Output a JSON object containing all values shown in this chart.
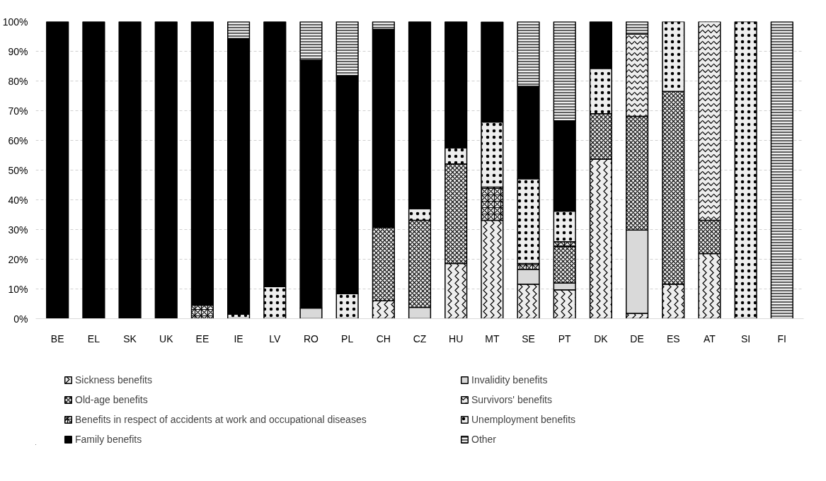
{
  "chart_data": {
    "type": "bar",
    "stacked": true,
    "categories": [
      "BE",
      "EL",
      "SK",
      "UK",
      "EE",
      "IE",
      "LV",
      "RO",
      "PL",
      "CH",
      "CZ",
      "HU",
      "MT",
      "SE",
      "PT",
      "DK",
      "DE",
      "ES",
      "AT",
      "SI",
      "FI"
    ],
    "series": [
      {
        "name": "Sickness benefits",
        "color": "#eeeeee",
        "values": [
          null,
          null,
          null,
          null,
          null,
          null,
          null,
          null,
          null,
          6.0,
          null,
          18.6,
          33.1,
          11.6,
          9.7,
          53.7,
          1.8,
          11.6,
          21.9,
          null,
          null
        ]
      },
      {
        "name": "Invalidity benefits",
        "color": "#d9d9d9",
        "values": [
          null,
          null,
          null,
          null,
          null,
          null,
          null,
          3.6,
          null,
          null,
          3.8,
          null,
          null,
          5.0,
          2.3,
          null,
          28.0,
          null,
          null,
          null,
          null
        ]
      },
      {
        "name": "Old-age benefits",
        "color": "#eeeeee",
        "values": [
          null,
          null,
          null,
          null,
          null,
          null,
          null,
          null,
          null,
          24.7,
          29.3,
          33.5,
          null,
          null,
          12.3,
          15.3,
          38.3,
          64.9,
          11.2,
          null,
          null
        ]
      },
      {
        "name": "Survivors' benefits",
        "color": "#eeeeee",
        "values": [
          null,
          null,
          null,
          null,
          null,
          null,
          null,
          null,
          null,
          null,
          null,
          null,
          null,
          null,
          null,
          null,
          27.7,
          null,
          66.9,
          null,
          null
        ]
      },
      {
        "name": "Benefits in respect of accidents at work and occupational diseases",
        "color": "#eeeeee",
        "values": [
          null,
          null,
          null,
          null,
          4.5,
          null,
          null,
          null,
          null,
          null,
          null,
          null,
          11.2,
          2.0,
          1.6,
          null,
          null,
          null,
          null,
          null,
          null
        ]
      },
      {
        "name": "Unemployment benefits",
        "color": "#eeeeee",
        "values": [
          null,
          null,
          null,
          null,
          null,
          1.5,
          10.8,
          null,
          8.4,
          null,
          3.9,
          5.4,
          21.9,
          28.5,
          10.3,
          15.2,
          null,
          23.5,
          null,
          100,
          null
        ]
      },
      {
        "name": "Family benefits",
        "color": "#000000",
        "values": [
          100,
          100,
          100,
          100,
          95.5,
          92.8,
          89.2,
          83.4,
          73.4,
          66.7,
          63.0,
          42.5,
          33.7,
          31.1,
          30.4,
          15.8,
          null,
          null,
          null,
          null,
          null
        ]
      },
      {
        "name": "Other",
        "color": "#eeeeee",
        "values": [
          null,
          null,
          null,
          null,
          null,
          5.7,
          null,
          13.0,
          18.2,
          2.6,
          null,
          null,
          null,
          21.8,
          33.4,
          null,
          4.2,
          null,
          null,
          null,
          100
        ]
      }
    ],
    "ylim": [
      0,
      100
    ],
    "yticks": [
      {
        "value": 0,
        "label": "0%"
      },
      {
        "value": 10,
        "label": "10%"
      },
      {
        "value": 20,
        "label": "20%"
      },
      {
        "value": 30,
        "label": "30%"
      },
      {
        "value": 40,
        "label": "40%"
      },
      {
        "value": 50,
        "label": "50%"
      },
      {
        "value": 60,
        "label": "60%"
      },
      {
        "value": 70,
        "label": "70%"
      },
      {
        "value": 80,
        "label": "80%"
      },
      {
        "value": 90,
        "label": "90%"
      },
      {
        "value": 100,
        "label": "100%"
      }
    ],
    "grid": "y",
    "legend": "bottom"
  }
}
